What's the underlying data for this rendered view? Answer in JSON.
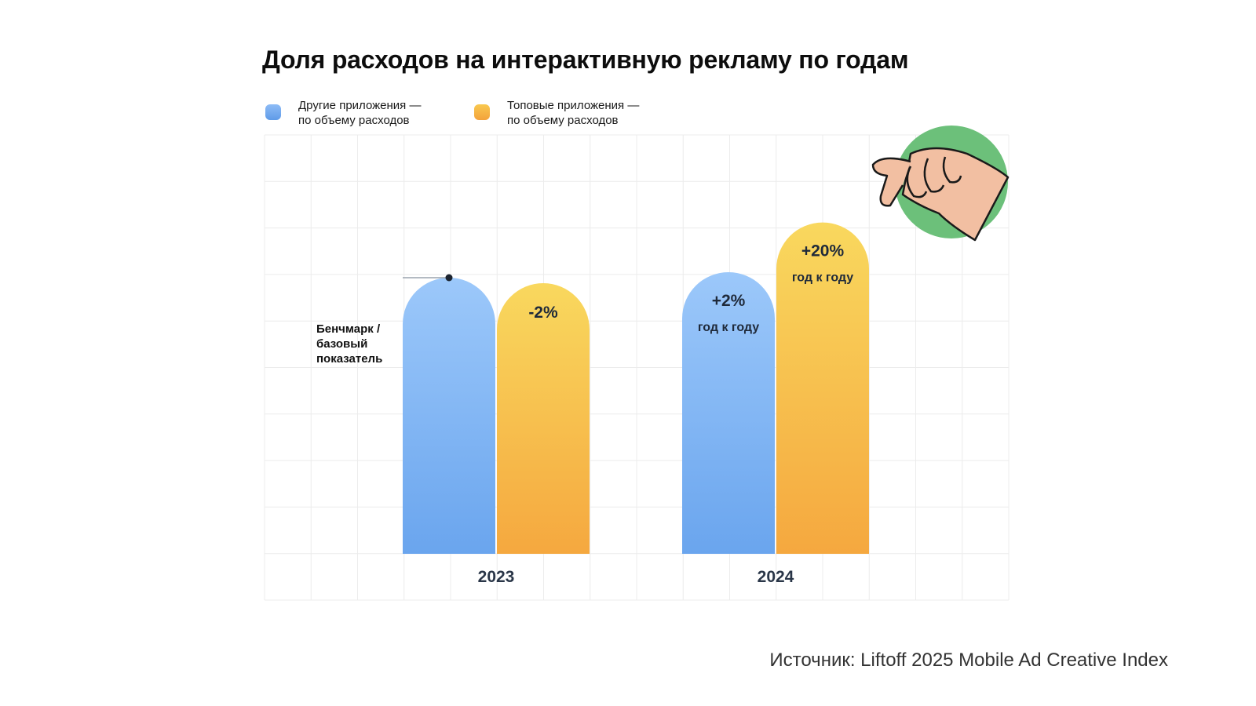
{
  "chart_data": {
    "type": "bar",
    "title": "Доля расходов на интерактивную рекламу по годам",
    "categories": [
      "2023",
      "2024"
    ],
    "series": [
      {
        "name": "Другие приложения —\nпо объему расходов",
        "values": [
          100,
          102
        ],
        "labels": [
          {
            "main": "",
            "sub": ""
          },
          {
            "main": "+2%",
            "sub": "год к году"
          }
        ]
      },
      {
        "name": "Топовые приложения —\nпо объему расходов",
        "values": [
          98,
          120
        ],
        "labels": [
          {
            "main": "-2%",
            "sub": ""
          },
          {
            "main": "+20%",
            "sub": "год к году"
          }
        ]
      }
    ],
    "colors": {
      "blue_top": "#9cc8fa",
      "blue_bottom": "#6aa5ee",
      "yellow_top": "#f9d85e",
      "yellow_bottom": "#f5a83f",
      "grid": "#ececec",
      "hand_circle": "#6cc07a",
      "hand_skin": "#f2bfa2"
    },
    "ylim": [
      0,
      125
    ],
    "xlabel": "",
    "ylabel": "",
    "grid": true,
    "legend_position": "top-left",
    "annotation": "Бенчмарк /\nбазовый\nпоказатель",
    "decoration_icon": "pointing-hand-icon"
  },
  "source": "Источник: Liftoff 2025 Mobile Ad Creative Index"
}
